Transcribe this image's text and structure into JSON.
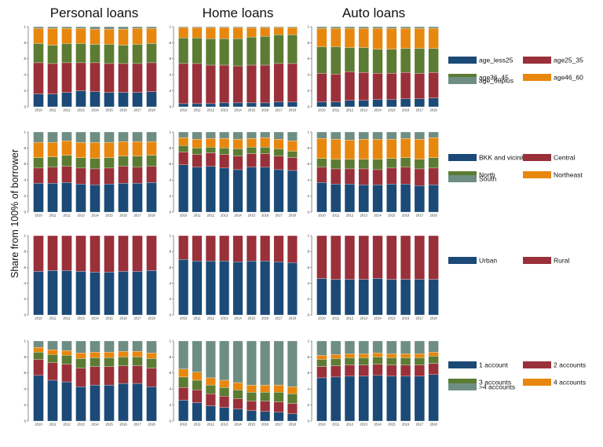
{
  "y_axis_label": "Share from 100% of borrower",
  "column_titles": [
    "Personal loans",
    "Home loans",
    "Auto loans"
  ],
  "years": [
    "2010",
    "2011",
    "2012",
    "2013",
    "2014",
    "2015",
    "2016",
    "2017",
    "2018"
  ],
  "y_tick_labels": [
    "0",
    ".2",
    ".4",
    ".6",
    ".8",
    "1"
  ],
  "chart_data": [
    {
      "type": "bar",
      "stacked": true,
      "ylim": [
        0,
        1
      ],
      "legend_position": "right",
      "categories": [
        "2010",
        "2011",
        "2012",
        "2013",
        "2014",
        "2015",
        "2016",
        "2017",
        "2018"
      ],
      "series_order": [
        "age_less25",
        "age25_35",
        "age36_45",
        "age46_60",
        "age_60plus"
      ],
      "legend_layout": [
        [
          "age_less25",
          "age25_35"
        ],
        [
          "age36_45",
          "age46_60"
        ],
        [
          "age_60plus"
        ]
      ],
      "colors": {
        "age_less25": "#1b4a77",
        "age25_35": "#9a3039",
        "age36_45": "#5c7c33",
        "age46_60": "#e8870e",
        "age_60plus": "#6f8e83"
      },
      "panels": [
        {
          "column": "Personal loans",
          "series": {
            "age_less25": [
              0.16,
              0.16,
              0.18,
              0.2,
              0.19,
              0.18,
              0.18,
              0.18,
              0.19
            ],
            "age25_35": [
              0.39,
              0.38,
              0.37,
              0.35,
              0.36,
              0.36,
              0.36,
              0.36,
              0.36
            ],
            "age36_45": [
              0.24,
              0.23,
              0.24,
              0.24,
              0.23,
              0.24,
              0.23,
              0.24,
              0.24
            ],
            "age46_60": [
              0.19,
              0.21,
              0.19,
              0.19,
              0.19,
              0.19,
              0.2,
              0.2,
              0.19
            ],
            "age_60plus": [
              0.02,
              0.02,
              0.02,
              0.02,
              0.03,
              0.03,
              0.03,
              0.02,
              0.02
            ]
          }
        },
        {
          "column": "Home loans",
          "series": {
            "age_less25": [
              0.04,
              0.04,
              0.04,
              0.05,
              0.05,
              0.05,
              0.05,
              0.06,
              0.06
            ],
            "age25_35": [
              0.5,
              0.5,
              0.48,
              0.47,
              0.46,
              0.47,
              0.47,
              0.48,
              0.48
            ],
            "age36_45": [
              0.32,
              0.32,
              0.33,
              0.33,
              0.34,
              0.35,
              0.36,
              0.36,
              0.36
            ],
            "age46_60": [
              0.13,
              0.13,
              0.14,
              0.14,
              0.14,
              0.12,
              0.11,
              0.09,
              0.09
            ],
            "age_60plus": [
              0.01,
              0.01,
              0.01,
              0.01,
              0.01,
              0.01,
              0.01,
              0.01,
              0.01
            ]
          }
        },
        {
          "column": "Auto loans",
          "series": {
            "age_less25": [
              0.06,
              0.06,
              0.08,
              0.08,
              0.09,
              0.09,
              0.1,
              0.1,
              0.11
            ],
            "age25_35": [
              0.36,
              0.35,
              0.36,
              0.35,
              0.33,
              0.33,
              0.33,
              0.32,
              0.32
            ],
            "age36_45": [
              0.33,
              0.34,
              0.3,
              0.31,
              0.3,
              0.3,
              0.3,
              0.31,
              0.3
            ],
            "age46_60": [
              0.23,
              0.23,
              0.24,
              0.24,
              0.26,
              0.26,
              0.25,
              0.25,
              0.25
            ],
            "age_60plus": [
              0.02,
              0.02,
              0.02,
              0.02,
              0.02,
              0.02,
              0.02,
              0.02,
              0.02
            ]
          }
        }
      ]
    },
    {
      "type": "bar",
      "stacked": true,
      "ylim": [
        0,
        1
      ],
      "legend_position": "right",
      "categories": [
        "2010",
        "2011",
        "2012",
        "2013",
        "2014",
        "2015",
        "2016",
        "2017",
        "2018"
      ],
      "series_order": [
        "BKK and vicinities",
        "Central",
        "North",
        "Northeast",
        "South"
      ],
      "legend_layout": [
        [
          "BKK and vicinities",
          "Central"
        ],
        [
          "North",
          "Northeast"
        ],
        [
          "South"
        ]
      ],
      "colors": {
        "BKK and vicinities": "#1b4a77",
        "Central": "#9a3039",
        "North": "#5c7c33",
        "Northeast": "#e8870e",
        "South": "#6f8e83"
      },
      "panels": [
        {
          "column": "Personal loans",
          "series": {
            "BKK and vicinities": [
              0.36,
              0.36,
              0.37,
              0.35,
              0.34,
              0.35,
              0.36,
              0.36,
              0.37
            ],
            "Central": [
              0.19,
              0.2,
              0.2,
              0.2,
              0.2,
              0.2,
              0.21,
              0.2,
              0.2
            ],
            "North": [
              0.13,
              0.13,
              0.14,
              0.13,
              0.13,
              0.13,
              0.13,
              0.14,
              0.14
            ],
            "Northeast": [
              0.19,
              0.18,
              0.18,
              0.19,
              0.2,
              0.19,
              0.18,
              0.18,
              0.17
            ],
            "South": [
              0.13,
              0.13,
              0.11,
              0.13,
              0.13,
              0.13,
              0.12,
              0.12,
              0.12
            ]
          }
        },
        {
          "column": "Home loans",
          "series": {
            "BKK and vicinities": [
              0.59,
              0.56,
              0.57,
              0.55,
              0.53,
              0.56,
              0.56,
              0.53,
              0.52
            ],
            "Central": [
              0.16,
              0.16,
              0.17,
              0.17,
              0.17,
              0.17,
              0.17,
              0.17,
              0.16
            ],
            "North": [
              0.08,
              0.08,
              0.07,
              0.08,
              0.09,
              0.08,
              0.08,
              0.09,
              0.08
            ],
            "Northeast": [
              0.1,
              0.11,
              0.11,
              0.12,
              0.12,
              0.11,
              0.12,
              0.12,
              0.13
            ],
            "South": [
              0.07,
              0.09,
              0.08,
              0.08,
              0.09,
              0.08,
              0.07,
              0.09,
              0.11
            ]
          }
        },
        {
          "column": "Auto loans",
          "series": {
            "BKK and vicinities": [
              0.37,
              0.35,
              0.35,
              0.34,
              0.34,
              0.35,
              0.35,
              0.33,
              0.34
            ],
            "Central": [
              0.19,
              0.19,
              0.19,
              0.2,
              0.19,
              0.2,
              0.21,
              0.21,
              0.21
            ],
            "North": [
              0.11,
              0.12,
              0.12,
              0.12,
              0.13,
              0.12,
              0.12,
              0.12,
              0.13
            ],
            "Northeast": [
              0.25,
              0.25,
              0.24,
              0.25,
              0.25,
              0.24,
              0.24,
              0.25,
              0.25
            ],
            "South": [
              0.08,
              0.09,
              0.1,
              0.09,
              0.09,
              0.09,
              0.08,
              0.09,
              0.07
            ]
          }
        }
      ]
    },
    {
      "type": "bar",
      "stacked": true,
      "ylim": [
        0,
        1
      ],
      "legend_position": "right",
      "categories": [
        "2010",
        "2011",
        "2012",
        "2013",
        "2014",
        "2015",
        "2016",
        "2017",
        "2018"
      ],
      "series_order": [
        "Urban",
        "Rural"
      ],
      "legend_layout": [
        [
          "Urban",
          "Rural"
        ]
      ],
      "colors": {
        "Urban": "#1b4a77",
        "Rural": "#9a3039"
      },
      "panels": [
        {
          "column": "Personal loans",
          "series": {
            "Urban": [
              0.55,
              0.56,
              0.56,
              0.55,
              0.54,
              0.54,
              0.55,
              0.55,
              0.56
            ],
            "Rural": [
              0.45,
              0.44,
              0.44,
              0.45,
              0.46,
              0.46,
              0.45,
              0.45,
              0.44
            ]
          }
        },
        {
          "column": "Home loans",
          "series": {
            "Urban": [
              0.7,
              0.68,
              0.68,
              0.68,
              0.67,
              0.68,
              0.68,
              0.67,
              0.66
            ],
            "Rural": [
              0.3,
              0.32,
              0.32,
              0.32,
              0.33,
              0.32,
              0.32,
              0.33,
              0.34
            ]
          }
        },
        {
          "column": "Auto loans",
          "series": {
            "Urban": [
              0.46,
              0.45,
              0.45,
              0.45,
              0.46,
              0.45,
              0.45,
              0.45,
              0.45
            ],
            "Rural": [
              0.54,
              0.55,
              0.55,
              0.55,
              0.54,
              0.55,
              0.55,
              0.55,
              0.55
            ]
          }
        }
      ]
    },
    {
      "type": "bar",
      "stacked": true,
      "ylim": [
        0,
        1
      ],
      "legend_position": "right",
      "categories": [
        "2010",
        "2011",
        "2012",
        "2013",
        "2014",
        "2015",
        "2016",
        "2017",
        "2018"
      ],
      "series_order": [
        "1 account",
        "2 accounts",
        "3 accounts",
        "4 accounts",
        ">4 accounts"
      ],
      "legend_layout": [
        [
          "1 account",
          "2 accounts"
        ],
        [
          "3 accounts",
          "4 accounts"
        ],
        [
          ">4 accounts"
        ]
      ],
      "colors": {
        "1 account": "#1b4a77",
        "2 accounts": "#9a3039",
        "3 accounts": "#5c7c33",
        "4 accounts": "#e8870e",
        ">4 accounts": "#6f8e83"
      },
      "panels": [
        {
          "column": "Personal loans",
          "series": {
            "1 account": [
              0.57,
              0.51,
              0.49,
              0.43,
              0.45,
              0.45,
              0.47,
              0.47,
              0.43
            ],
            "2 accounts": [
              0.2,
              0.22,
              0.22,
              0.23,
              0.23,
              0.23,
              0.22,
              0.22,
              0.23
            ],
            "3 accounts": [
              0.09,
              0.1,
              0.11,
              0.12,
              0.11,
              0.11,
              0.11,
              0.11,
              0.12
            ],
            "4 accounts": [
              0.06,
              0.06,
              0.06,
              0.07,
              0.07,
              0.07,
              0.07,
              0.07,
              0.07
            ],
            ">4 accounts": [
              0.08,
              0.11,
              0.12,
              0.15,
              0.14,
              0.14,
              0.13,
              0.13,
              0.15
            ]
          }
        },
        {
          "column": "Home loans",
          "series": {
            "1 account": [
              0.26,
              0.23,
              0.19,
              0.17,
              0.15,
              0.13,
              0.12,
              0.11,
              0.09
            ],
            "2 accounts": [
              0.16,
              0.16,
              0.15,
              0.14,
              0.13,
              0.12,
              0.13,
              0.13,
              0.13
            ],
            "3 accounts": [
              0.13,
              0.12,
              0.11,
              0.11,
              0.11,
              0.11,
              0.11,
              0.12,
              0.12
            ],
            "4 accounts": [
              0.1,
              0.1,
              0.09,
              0.09,
              0.09,
              0.09,
              0.09,
              0.09,
              0.09
            ],
            ">4 accounts": [
              0.35,
              0.39,
              0.46,
              0.49,
              0.52,
              0.55,
              0.55,
              0.55,
              0.57
            ]
          }
        },
        {
          "column": "Auto loans",
          "series": {
            "1 account": [
              0.54,
              0.55,
              0.56,
              0.56,
              0.57,
              0.56,
              0.56,
              0.56,
              0.58
            ],
            "2 accounts": [
              0.14,
              0.14,
              0.14,
              0.14,
              0.14,
              0.14,
              0.14,
              0.14,
              0.14
            ],
            "3 accounts": [
              0.09,
              0.09,
              0.09,
              0.09,
              0.09,
              0.09,
              0.09,
              0.09,
              0.09
            ],
            "4 accounts": [
              0.05,
              0.05,
              0.05,
              0.05,
              0.05,
              0.05,
              0.05,
              0.05,
              0.05
            ],
            ">4 accounts": [
              0.18,
              0.17,
              0.16,
              0.16,
              0.15,
              0.16,
              0.16,
              0.16,
              0.14
            ]
          }
        }
      ]
    }
  ]
}
